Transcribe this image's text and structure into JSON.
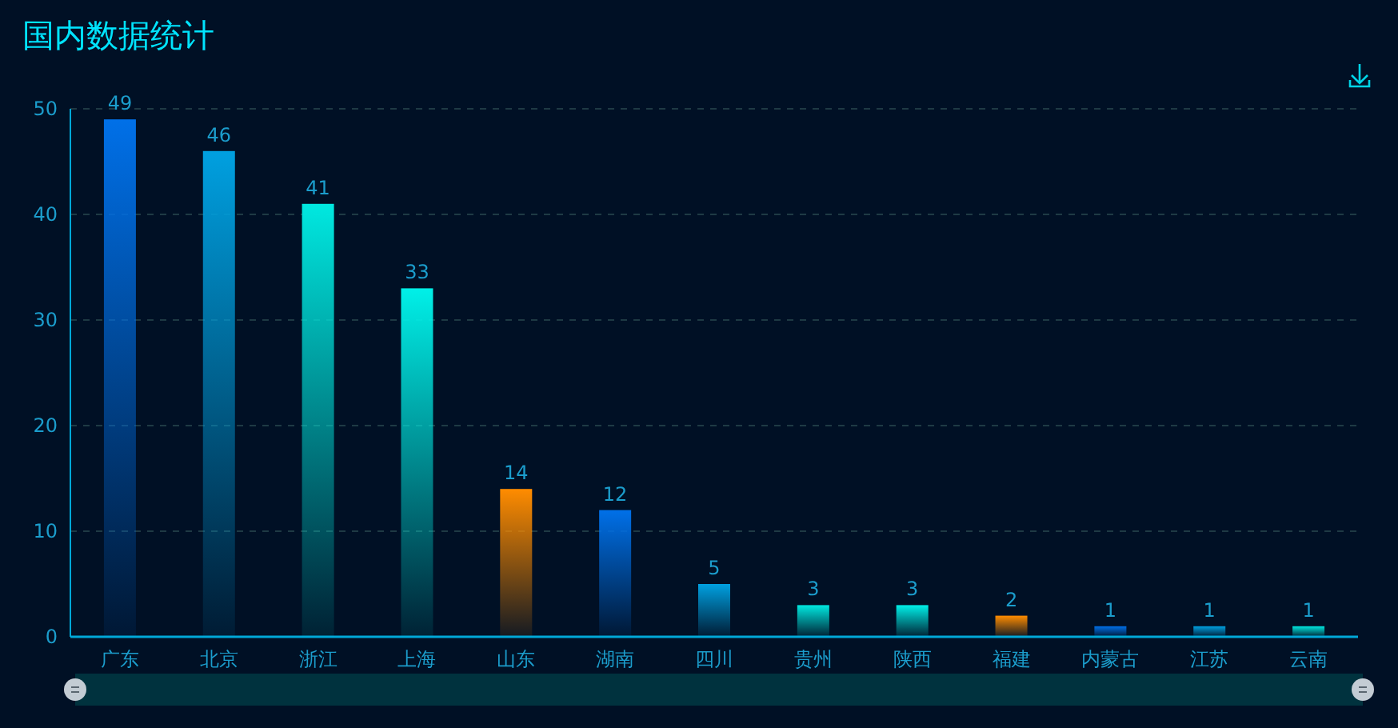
{
  "chart_data": {
    "type": "bar",
    "title": "国内数据统计",
    "categories": [
      "广东",
      "北京",
      "浙江",
      "上海",
      "山东",
      "湖南",
      "四川",
      "贵州",
      "陕西",
      "福建",
      "内蒙古",
      "江苏",
      "云南"
    ],
    "values": [
      49,
      46,
      41,
      33,
      14,
      12,
      5,
      3,
      3,
      2,
      1,
      1,
      1
    ],
    "colors": [
      "#0070e8",
      "#00a0e0",
      "#00e8e0",
      "#00f0e8",
      "#ff8c00",
      "#0070e8",
      "#00a0e0",
      "#00e8e0",
      "#00f0e8",
      "#ff8c00",
      "#0070e8",
      "#00a0e0",
      "#00e8e0"
    ],
    "ylim": [
      0,
      50
    ],
    "yticks": [
      0,
      10,
      20,
      30,
      40,
      50
    ],
    "grid": "y",
    "data_labels": true
  }
}
